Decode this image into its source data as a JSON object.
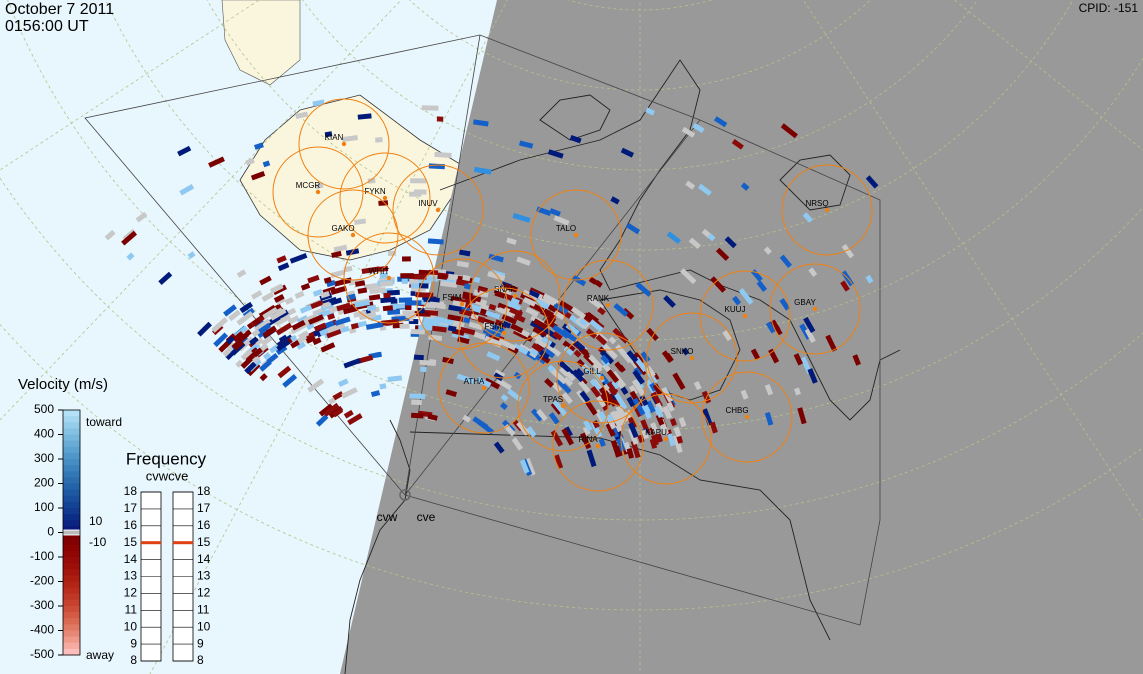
{
  "header": {
    "date": "October  7 2011",
    "time": "0156:00 UT",
    "cpid": "CPID:  -151"
  },
  "velocity_scale": {
    "title": "Velocity (m/s)",
    "ticks": [
      500,
      400,
      300,
      200,
      100,
      0,
      -100,
      -200,
      -300,
      -400,
      -500
    ],
    "toward": "toward",
    "away": "away",
    "limits": [
      10,
      -10
    ]
  },
  "frequency": {
    "title": "Frequency",
    "radars": "cvwcve",
    "ticks": [
      18,
      17,
      16,
      15,
      14,
      13,
      12,
      11,
      10,
      9,
      8
    ],
    "values": [
      15,
      15
    ]
  },
  "stations": [
    "KIAN",
    "MCGR",
    "FYKN",
    "INUV",
    "GAKO",
    "WHIT",
    "FSIM",
    "SNAP",
    "FSMI",
    "RANK",
    "TALO",
    "NRSQ",
    "KUUJ",
    "GBAY",
    "SNKO",
    "GILL",
    "ATHA",
    "TPAS",
    "RINA",
    "CHBG",
    "KAPU"
  ],
  "radars": [
    "cvw",
    "cve"
  ]
}
